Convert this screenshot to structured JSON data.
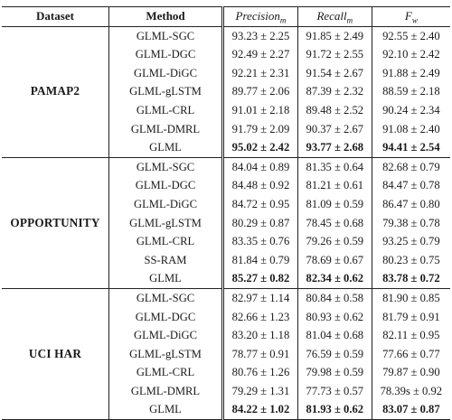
{
  "caption_fragment": "",
  "header": {
    "dataset": "Dataset",
    "method": "Method",
    "precision": "Precision",
    "precision_sub": "m",
    "recall": "Recall",
    "recall_sub": "m",
    "fw": "F",
    "fw_sub": "w"
  },
  "groups": [
    {
      "dataset": "PAMAP2",
      "rows": [
        {
          "method": "GLML-SGC",
          "precision": "93.23 ± 2.25",
          "recall": "91.85 ± 2.49",
          "fw": "92.55 ± 2.40",
          "bold": false
        },
        {
          "method": "GLML-DGC",
          "precision": "92.49 ± 2.27",
          "recall": "91.72 ± 2.55",
          "fw": "92.10 ± 2.42",
          "bold": false
        },
        {
          "method": "GLML-DiGC",
          "precision": "92.21 ± 2.31",
          "recall": "91.54 ± 2.67",
          "fw": "91.88 ± 2.49",
          "bold": false
        },
        {
          "method": "GLML-gLSTM",
          "precision": "89.77 ± 2.06",
          "recall": "87.39 ± 2.32",
          "fw": "88.59 ± 2.18",
          "bold": false
        },
        {
          "method": "GLML-CRL",
          "precision": "91.01 ± 2.18",
          "recall": "89.48 ± 2.52",
          "fw": "90.24 ± 2.34",
          "bold": false
        },
        {
          "method": "GLML-DMRL",
          "precision": "91.79 ± 2.09",
          "recall": "90.37 ± 2.67",
          "fw": "91.08 ± 2.40",
          "bold": false
        },
        {
          "method": "GLML",
          "precision": "95.02 ± 2.42",
          "recall": "93.77 ± 2.68",
          "fw": "94.41 ± 2.54",
          "bold": true
        }
      ]
    },
    {
      "dataset": "OPPORTUNITY",
      "rows": [
        {
          "method": "GLML-SGC",
          "precision": "84.04 ± 0.89",
          "recall": "81.35 ± 0.64",
          "fw": "82.68 ± 0.79",
          "bold": false
        },
        {
          "method": "GLML-DGC",
          "precision": "84.48 ± 0.92",
          "recall": "81.21 ± 0.61",
          "fw": "84.47 ± 0.78",
          "bold": false
        },
        {
          "method": "GLML-DiGC",
          "precision": "84.72 ± 0.95",
          "recall": "81.09 ± 0.59",
          "fw": "86.47 ± 0.80",
          "bold": false
        },
        {
          "method": "GLML-gLSTM",
          "precision": "80.29 ± 0.87",
          "recall": "78.45 ± 0.68",
          "fw": "79.38 ± 0.78",
          "bold": false
        },
        {
          "method": "GLML-CRL",
          "precision": "83.35 ± 0.76",
          "recall": "79.26 ± 0.59",
          "fw": "93.25 ± 0.79",
          "bold": false
        },
        {
          "method": "SS-RAM",
          "precision": "81.84 ± 0.79",
          "recall": "78.69 ± 0.67",
          "fw": "80.23 ± 0.75",
          "bold": false
        },
        {
          "method": "GLML",
          "precision": "85.27 ± 0.82",
          "recall": "82.34 ± 0.62",
          "fw": "83.78 ± 0.72",
          "bold": true
        }
      ]
    },
    {
      "dataset": "UCI HAR",
      "rows": [
        {
          "method": "GLML-SGC",
          "precision": "82.97 ± 1.14",
          "recall": "80.84 ± 0.58",
          "fw": "81.90 ± 0.85",
          "bold": false
        },
        {
          "method": "GLML-DGC",
          "precision": "82.66 ± 1.23",
          "recall": "80.93 ± 0.62",
          "fw": "81.79 ± 0.91",
          "bold": false
        },
        {
          "method": "GLML-DiGC",
          "precision": "83.20 ± 1.18",
          "recall": "81.04 ± 0.68",
          "fw": "82.11 ± 0.95",
          "bold": false
        },
        {
          "method": "GLML-gLSTM",
          "precision": "78.77 ± 0.91",
          "recall": "76.59 ± 0.59",
          "fw": "77.66 ± 0.77",
          "bold": false
        },
        {
          "method": "GLML-CRL",
          "precision": "80.76 ± 1.26",
          "recall": "79.98 ± 0.59",
          "fw": "79.87 ± 0.90",
          "bold": false
        },
        {
          "method": "GLML-DMRL",
          "precision": "79.29 ± 1.31",
          "recall": "77.73 ± 0.57",
          "fw": "78.39s ± 0.92",
          "bold": false
        },
        {
          "method": "GLML",
          "precision": "84.22 ± 1.02",
          "recall": "81.93 ± 0.62",
          "fw": "83.07 ± 0.87",
          "bold": true
        }
      ]
    }
  ]
}
